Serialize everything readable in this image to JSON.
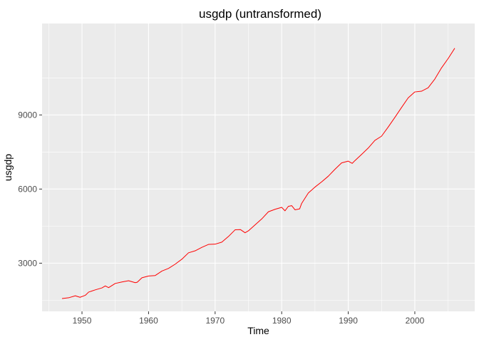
{
  "chart_data": {
    "type": "line",
    "title": "usgdp (untransformed)",
    "xlabel": "Time",
    "ylabel": "usgdp",
    "xlim": [
      1944.0,
      2009.0
    ],
    "ylim": [
      1050,
      12700
    ],
    "xticks": [
      1950,
      1960,
      1970,
      1980,
      1990,
      2000
    ],
    "xtick_labels": [
      "1950",
      "1960",
      "1970",
      "1980",
      "1990",
      "2000"
    ],
    "yticks": [
      3000,
      6000,
      9000
    ],
    "ytick_labels": [
      "3000",
      "6000",
      "9000"
    ],
    "grid": true,
    "legend": "none",
    "series": [
      {
        "color": "#ff0000",
        "x": [
          1947.0,
          1948.0,
          1949.0,
          1949.7,
          1950.5,
          1951.0,
          1952.0,
          1953.0,
          1953.5,
          1954.0,
          1955.0,
          1956.0,
          1957.0,
          1958.0,
          1958.3,
          1959.0,
          1960.0,
          1961.0,
          1962.0,
          1963.0,
          1964.0,
          1965.0,
          1966.0,
          1967.0,
          1968.0,
          1969.0,
          1970.0,
          1971.0,
          1972.0,
          1973.0,
          1973.8,
          1974.5,
          1975.0,
          1976.0,
          1977.0,
          1978.0,
          1979.0,
          1980.0,
          1980.5,
          1981.0,
          1981.5,
          1982.0,
          1982.7,
          1983.0,
          1984.0,
          1985.0,
          1986.0,
          1987.0,
          1988.0,
          1989.0,
          1990.0,
          1990.6,
          1991.0,
          1992.0,
          1993.0,
          1994.0,
          1995.0,
          1996.0,
          1997.0,
          1998.0,
          1999.0,
          2000.0,
          2001.0,
          2002.0,
          2003.0,
          2004.0,
          2005.0,
          2006.0
        ],
        "y": [
          1570,
          1600,
          1680,
          1620,
          1700,
          1830,
          1920,
          2000,
          2080,
          2010,
          2180,
          2240,
          2290,
          2210,
          2230,
          2410,
          2480,
          2500,
          2680,
          2790,
          2960,
          3160,
          3420,
          3500,
          3640,
          3760,
          3770,
          3850,
          4080,
          4350,
          4360,
          4230,
          4310,
          4550,
          4790,
          5080,
          5180,
          5260,
          5120,
          5300,
          5330,
          5160,
          5200,
          5420,
          5840,
          6080,
          6290,
          6520,
          6800,
          7060,
          7130,
          7040,
          7150,
          7400,
          7660,
          7970,
          8140,
          8510,
          8900,
          9300,
          9690,
          9930,
          9960,
          10100,
          10450,
          10900,
          11280,
          11700
        ]
      }
    ]
  }
}
